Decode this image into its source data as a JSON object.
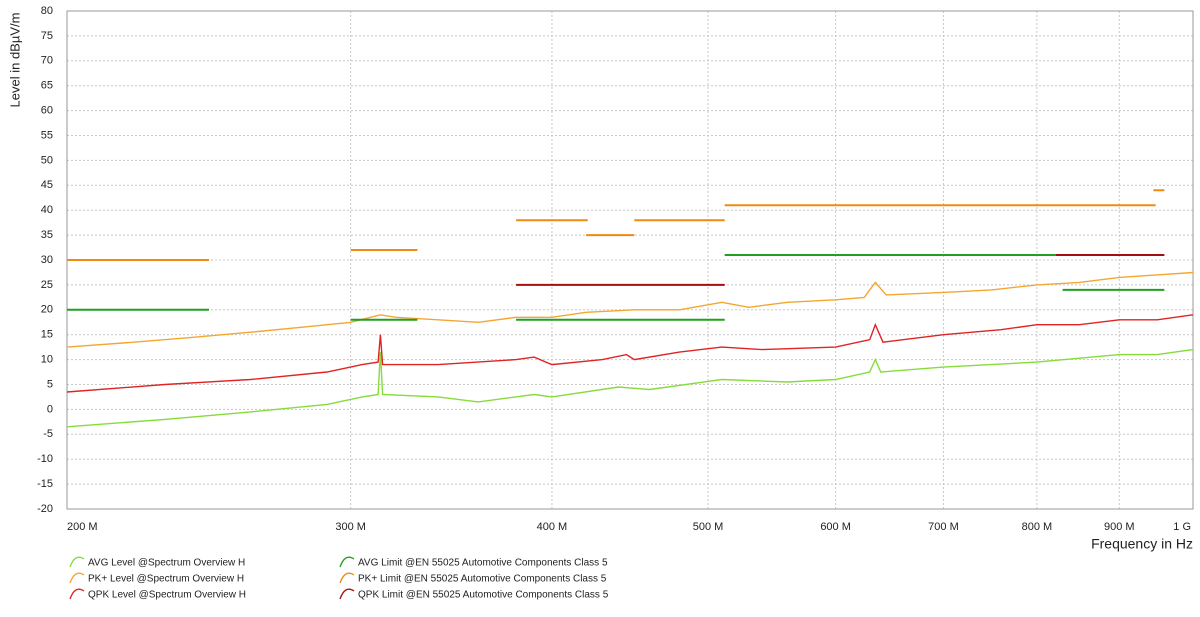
{
  "chart_data": {
    "type": "line",
    "x_label": "Frequency in Hz",
    "y_label": "Level in dBµV/m",
    "xscale": "log",
    "grid": true,
    "xlim": [
      200000000,
      1000000000
    ],
    "xticks": [
      {
        "value": 200000000,
        "label": "200 M"
      },
      {
        "value": 300000000,
        "label": "300 M"
      },
      {
        "value": 400000000,
        "label": "400 M"
      },
      {
        "value": 500000000,
        "label": "500 M"
      },
      {
        "value": 600000000,
        "label": "600 M"
      },
      {
        "value": 700000000,
        "label": "700 M"
      },
      {
        "value": 800000000,
        "label": "800 M"
      },
      {
        "value": 900000000,
        "label": "900 M"
      },
      {
        "value": 1000000000,
        "label": "1 G"
      }
    ],
    "ylim": [
      -20,
      80
    ],
    "yticks": [
      -20,
      -15,
      -10,
      -5,
      0,
      5,
      10,
      15,
      20,
      25,
      30,
      35,
      40,
      45,
      50,
      55,
      60,
      65,
      70,
      75,
      80
    ],
    "series": [
      {
        "name": "AVG Level @Spectrum Overview H",
        "color": "#86dc3a",
        "x": [
          200000000,
          230000000,
          260000000,
          290000000,
          305000000,
          312000000,
          313000000,
          314000000,
          340000000,
          360000000,
          390000000,
          400000000,
          440000000,
          460000000,
          510000000,
          560000000,
          600000000,
          630000000,
          635000000,
          640000000,
          700000000,
          800000000,
          900000000,
          950000000,
          1000000000
        ],
        "values": [
          -3.5,
          -2,
          -0.5,
          1,
          2.5,
          3,
          11.5,
          3,
          2.5,
          1.5,
          3,
          2.5,
          4.5,
          4,
          6,
          5.5,
          6,
          7.5,
          10,
          7.5,
          8.5,
          9.5,
          11,
          11,
          12
        ]
      },
      {
        "name": "PK+ Level @Spectrum Overview H",
        "color": "#f5a630",
        "x": [
          200000000,
          220000000,
          240000000,
          260000000,
          280000000,
          300000000,
          313000000,
          320000000,
          340000000,
          360000000,
          380000000,
          400000000,
          420000000,
          450000000,
          480000000,
          510000000,
          530000000,
          560000000,
          600000000,
          625000000,
          635000000,
          645000000,
          700000000,
          750000000,
          800000000,
          850000000,
          900000000,
          950000000,
          1000000000
        ],
        "values": [
          12.5,
          13.5,
          14.5,
          15.5,
          16.5,
          17.5,
          19,
          18.5,
          18,
          17.5,
          18.5,
          18.5,
          19.5,
          20,
          20,
          21.5,
          20.5,
          21.5,
          22,
          22.5,
          25.5,
          23,
          23.5,
          24,
          25,
          25.5,
          26.5,
          27,
          27.5
        ]
      },
      {
        "name": "QPK Level @Spectrum Overview H",
        "color": "#e02424",
        "x": [
          200000000,
          230000000,
          260000000,
          290000000,
          305000000,
          312000000,
          313000000,
          314000000,
          340000000,
          380000000,
          390000000,
          400000000,
          430000000,
          445000000,
          450000000,
          480000000,
          510000000,
          540000000,
          600000000,
          630000000,
          635000000,
          642000000,
          700000000,
          760000000,
          800000000,
          850000000,
          900000000,
          950000000,
          1000000000
        ],
        "values": [
          3.5,
          5,
          6,
          7.5,
          9,
          9.5,
          15,
          9,
          9,
          10,
          10.5,
          9,
          10,
          11,
          10,
          11.5,
          12.5,
          12,
          12.5,
          14,
          17,
          13.5,
          15,
          16,
          17,
          17,
          18,
          18,
          19
        ]
      },
      {
        "name": "AVG Limit @EN 55025 Automotive Components Class 5",
        "color": "#1fa01f",
        "x": [
          200000000,
          245000000,
          null,
          300000000,
          330000000,
          null,
          380000000,
          512000000,
          null,
          512000000,
          822000000,
          null,
          830000000,
          960000000
        ],
        "values": [
          20,
          20,
          null,
          18,
          18,
          null,
          18,
          18,
          null,
          31,
          31,
          null,
          24,
          24
        ]
      },
      {
        "name": "PK+ Limit @EN 55025 Automotive Components Class 5",
        "color": "#f08a10",
        "x": [
          200000000,
          245000000,
          null,
          300000000,
          330000000,
          null,
          380000000,
          421000000,
          null,
          420000000,
          450000000,
          null,
          450000000,
          512000000,
          null,
          512000000,
          948000000,
          null,
          945000000,
          960000000
        ],
        "values": [
          30,
          30,
          null,
          32,
          32,
          null,
          38,
          38,
          null,
          35,
          35,
          null,
          38,
          38,
          null,
          41,
          41,
          null,
          44,
          44
        ]
      },
      {
        "name": "QPK Limit @EN 55025 Automotive Components Class 5",
        "color": "#a50f0f",
        "x": [
          380000000,
          512000000,
          null,
          822000000,
          960000000
        ],
        "values": [
          25,
          25,
          null,
          31,
          31
        ]
      }
    ]
  }
}
